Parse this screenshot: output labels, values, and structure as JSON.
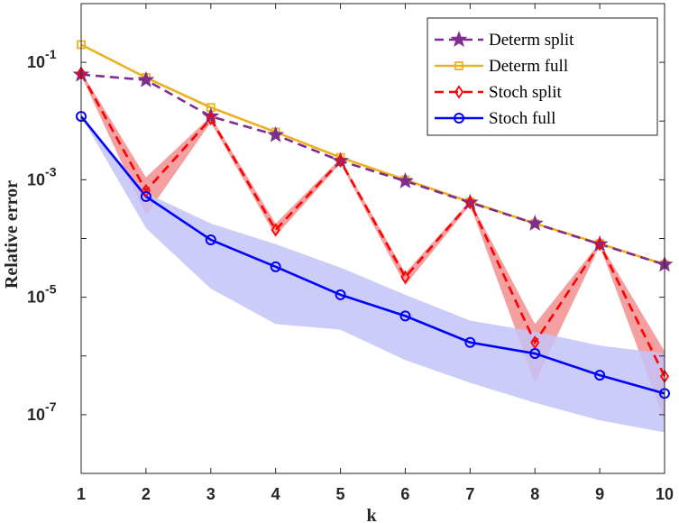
{
  "chart_data": {
    "type": "line",
    "title": "",
    "xlabel": "k",
    "ylabel": "Relative error",
    "yscale": "log",
    "xlim": [
      1,
      10
    ],
    "ylim_exp": [
      -8,
      0
    ],
    "x": [
      1,
      2,
      3,
      4,
      5,
      6,
      7,
      8,
      9,
      10
    ],
    "x_ticks": [
      "1",
      "2",
      "3",
      "4",
      "5",
      "6",
      "7",
      "8",
      "9",
      "10"
    ],
    "y_ticks": [
      {
        "base": "10",
        "exp": "-1",
        "value_exp": -1
      },
      {
        "base": "10",
        "exp": "-3",
        "value_exp": -3
      },
      {
        "base": "10",
        "exp": "-5",
        "value_exp": -5
      },
      {
        "base": "10",
        "exp": "-7",
        "value_exp": -7
      }
    ],
    "legend_position": "top-right",
    "series": [
      {
        "name": "Determ split",
        "color": "#7e2f8e",
        "dash": "dashed",
        "marker": "star",
        "values": [
          0.062,
          0.05,
          0.012,
          0.0058,
          0.0021,
          0.00095,
          0.00041,
          0.00018,
          8e-05,
          3.6e-05
        ]
      },
      {
        "name": "Determ full",
        "color": "#edb120",
        "dash": "solid",
        "marker": "square",
        "values": [
          0.2,
          0.055,
          0.017,
          0.0065,
          0.0024,
          0.001,
          0.00042,
          0.00018,
          8.2e-05,
          3.6e-05
        ]
      },
      {
        "name": "Stoch split",
        "color": "#ff0000",
        "dash": "dashed",
        "marker": "diamond",
        "band_color": "#f08080",
        "values": [
          0.065,
          0.00065,
          0.011,
          0.00014,
          0.0021,
          2.2e-05,
          0.00041,
          1.7e-06,
          8e-05,
          4.5e-07
        ],
        "band_low": [
          0.06,
          0.00025,
          0.0095,
          0.00011,
          0.0019,
          1.6e-05,
          0.00037,
          3.5e-07,
          7.5e-05,
          8e-08
        ],
        "band_high": [
          0.07,
          0.0011,
          0.012,
          0.00018,
          0.0023,
          2.6e-05,
          0.00044,
          3.5e-06,
          8.5e-05,
          1.2e-06
        ]
      },
      {
        "name": "Stoch full",
        "color": "#0000ff",
        "dash": "solid",
        "marker": "circle",
        "band_color": "#c3c3f8",
        "values": [
          0.012,
          0.00052,
          9.5e-05,
          3.3e-05,
          1.1e-05,
          4.8e-06,
          1.7e-06,
          1.1e-06,
          4.7e-07,
          2.3e-07
        ],
        "band_low": [
          0.012,
          0.00015,
          1.4e-05,
          3.5e-06,
          2.8e-06,
          8.5e-07,
          3.5e-07,
          1.6e-07,
          8e-08,
          5e-08
        ],
        "band_high": [
          0.012,
          0.0006,
          0.00018,
          8e-05,
          3.2e-05,
          1.1e-05,
          4e-06,
          2.6e-06,
          1.5e-06,
          1.1e-06
        ]
      }
    ]
  }
}
